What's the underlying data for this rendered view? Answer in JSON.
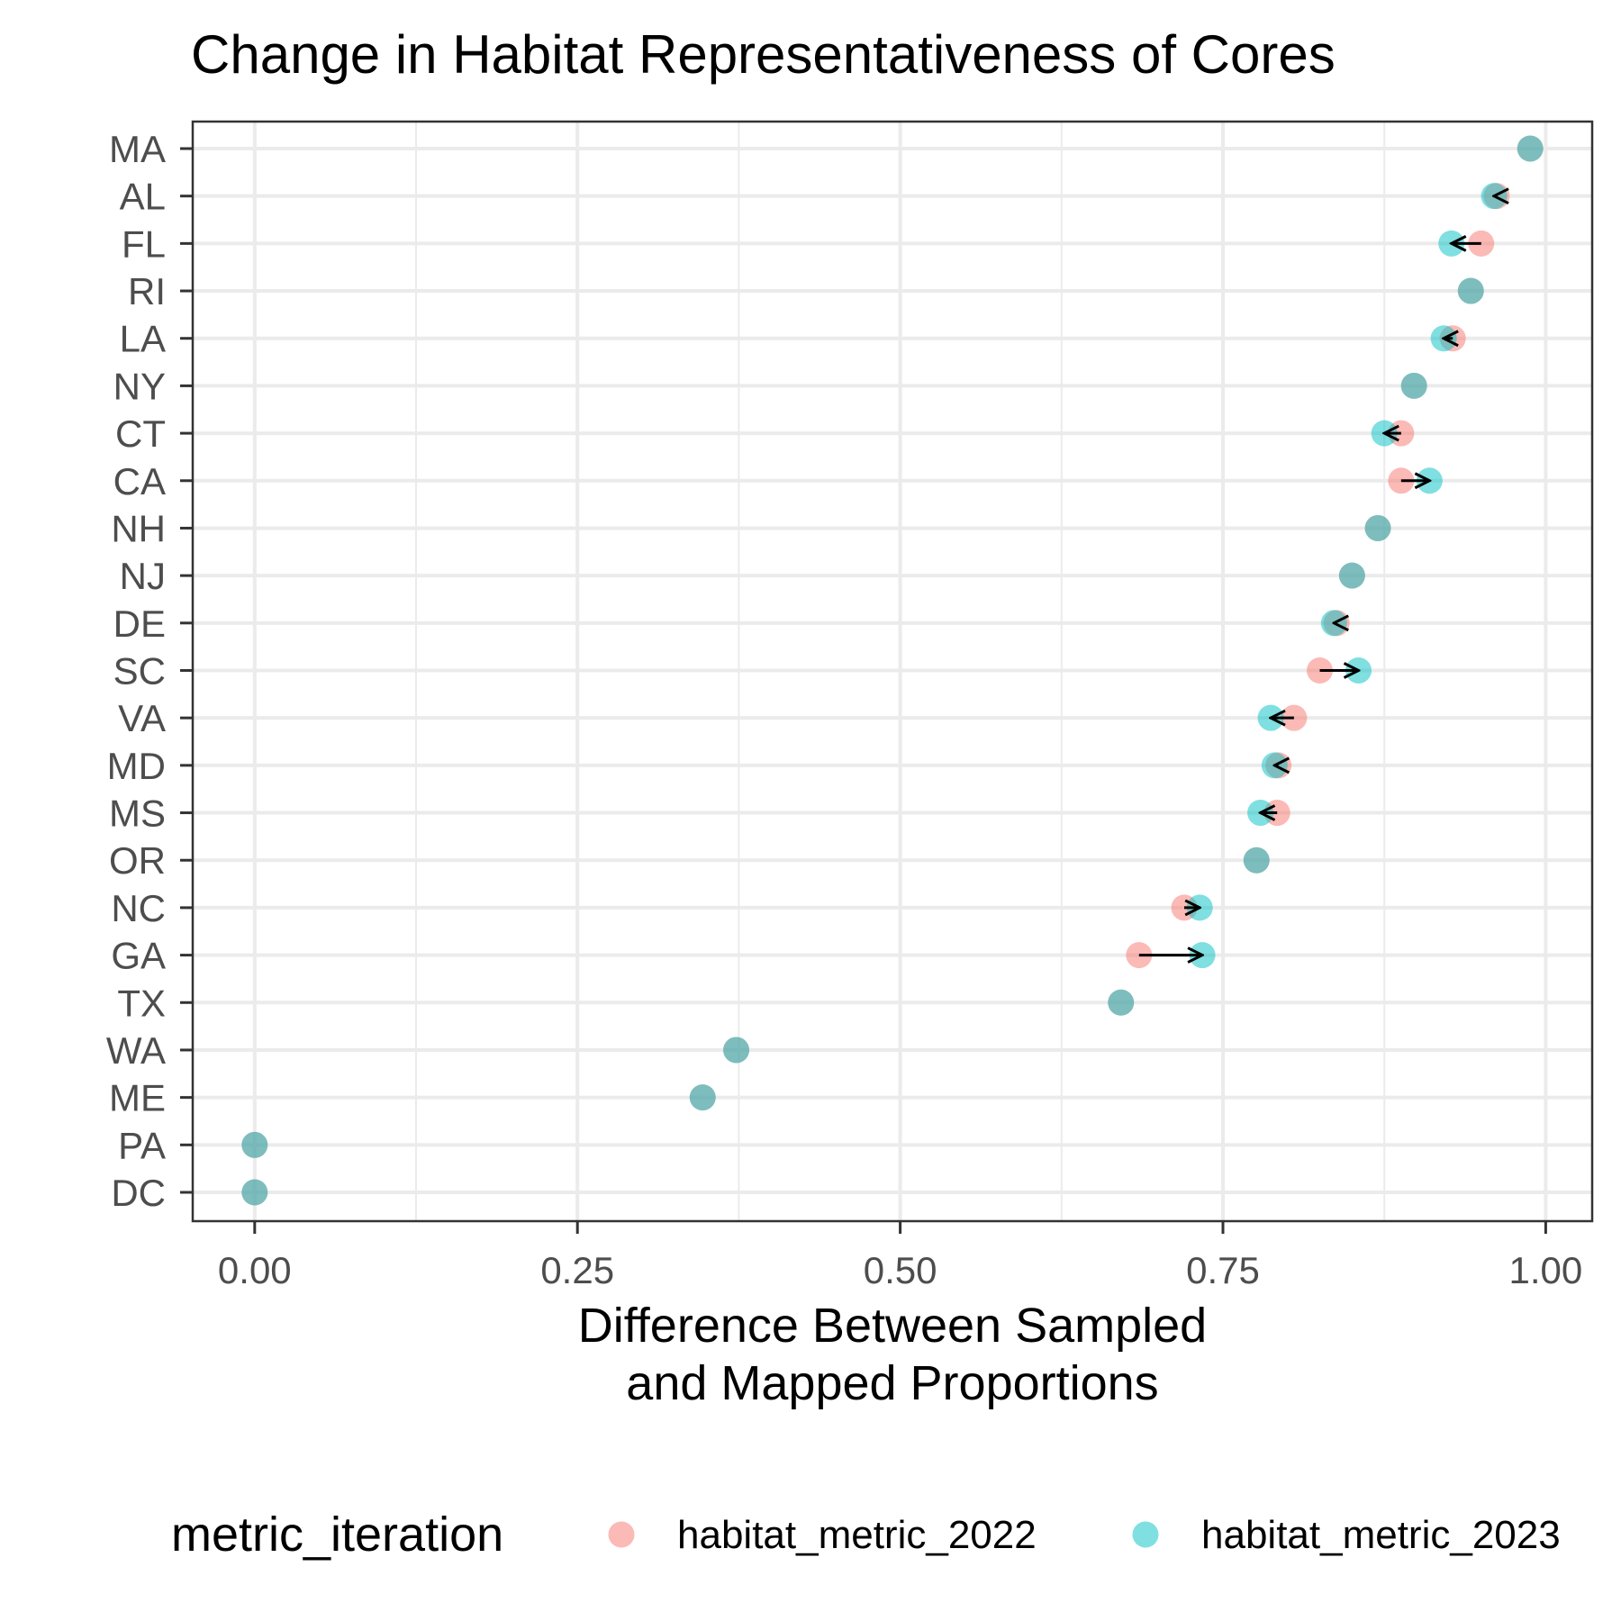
{
  "chart_data": {
    "type": "scatter",
    "title": "Change in Habitat Representativeness of Cores",
    "xlabel": [
      "Difference Between Sampled",
      "and Mapped Proportions"
    ],
    "ylabel": "",
    "xlim": [
      -0.048,
      1.036
    ],
    "x_ticks": [
      "0.00",
      "0.25",
      "0.50",
      "0.75",
      "1.00"
    ],
    "x_tick_values": [
      0.0,
      0.25,
      0.5,
      0.75,
      1.0
    ],
    "grid": true,
    "legend_position": "bottom",
    "legend": {
      "title": "metric_iteration",
      "entries": [
        {
          "label": "habitat_metric_2022",
          "color": "#F8766D"
        },
        {
          "label": "habitat_metric_2023",
          "color": "#00BFC4"
        }
      ]
    },
    "categories": [
      "MA",
      "AL",
      "FL",
      "RI",
      "LA",
      "NY",
      "CT",
      "CA",
      "NH",
      "NJ",
      "DE",
      "SC",
      "VA",
      "MD",
      "MS",
      "OR",
      "NC",
      "GA",
      "TX",
      "WA",
      "ME",
      "PA",
      "DC"
    ],
    "series": [
      {
        "name": "habitat_metric_2022",
        "color": "#F8766D",
        "values": [
          0.988,
          0.962,
          0.95,
          0.942,
          0.928,
          0.898,
          0.888,
          0.888,
          0.87,
          0.85,
          0.838,
          0.825,
          0.805,
          0.793,
          0.792,
          0.776,
          0.72,
          0.685,
          0.671,
          0.373,
          0.347,
          0.0,
          0.0
        ]
      },
      {
        "name": "habitat_metric_2023",
        "color": "#00BFC4",
        "values": [
          0.988,
          0.96,
          0.927,
          0.942,
          0.921,
          0.898,
          0.875,
          0.91,
          0.87,
          0.85,
          0.836,
          0.855,
          0.787,
          0.79,
          0.779,
          0.776,
          0.732,
          0.734,
          0.671,
          0.373,
          0.347,
          0.0,
          0.0
        ]
      }
    ]
  }
}
